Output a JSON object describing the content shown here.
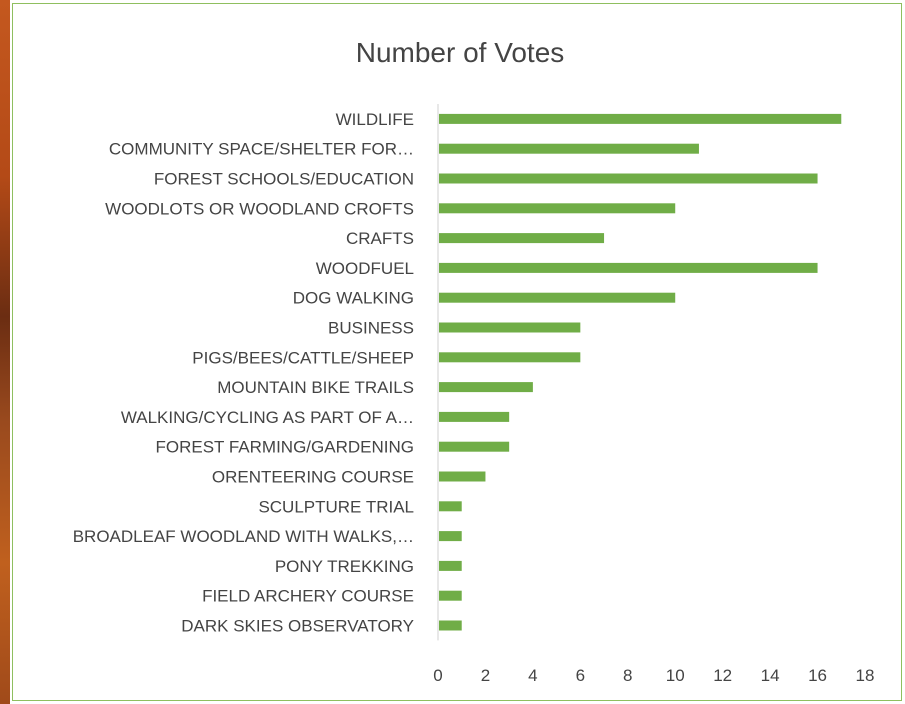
{
  "chart_data": {
    "type": "bar",
    "orientation": "horizontal",
    "title": "Number of Votes",
    "categories": [
      "WILDLIFE",
      "COMMUNITY SPACE/SHELTER FOR…",
      "FOREST SCHOOLS/EDUCATION",
      "WOODLOTS OR WOODLAND CROFTS",
      "CRAFTS",
      "WOODFUEL",
      "DOG WALKING",
      "BUSINESS",
      "PIGS/BEES/CATTLE/SHEEP",
      "MOUNTAIN BIKE TRAILS",
      "WALKING/CYCLING AS PART OF A…",
      "FOREST FARMING/GARDENING",
      "ORENTEERING COURSE",
      "SCULPTURE TRIAL",
      "BROADLEAF WOODLAND WITH WALKS,…",
      "PONY TREKKING",
      "FIELD ARCHERY COURSE",
      "DARK SKIES OBSERVATORY"
    ],
    "values": [
      17,
      11,
      16,
      10,
      7,
      16,
      10,
      6,
      6,
      4,
      3,
      3,
      2,
      1,
      1,
      1,
      1,
      1
    ],
    "xlim": [
      0,
      18
    ],
    "xticks": [
      "0",
      "2",
      "4",
      "6",
      "8",
      "10",
      "12",
      "14",
      "16",
      "18"
    ],
    "grid": false,
    "legend": "none",
    "colors": {
      "bar": "#70ad47",
      "frame": "#8fbf5f",
      "text": "#444444",
      "axis": "#d9d9d9"
    }
  }
}
